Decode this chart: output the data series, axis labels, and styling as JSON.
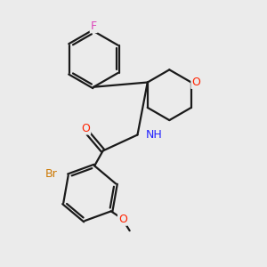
{
  "background_color": "#ebebeb",
  "atom_colors": {
    "F": "#dd44bb",
    "O": "#ff2200",
    "N": "#2222ff",
    "Br": "#cc7700"
  },
  "bond_color": "#1a1a1a",
  "bond_lw": 1.6,
  "figsize": [
    3.0,
    3.0
  ],
  "dpi": 100
}
